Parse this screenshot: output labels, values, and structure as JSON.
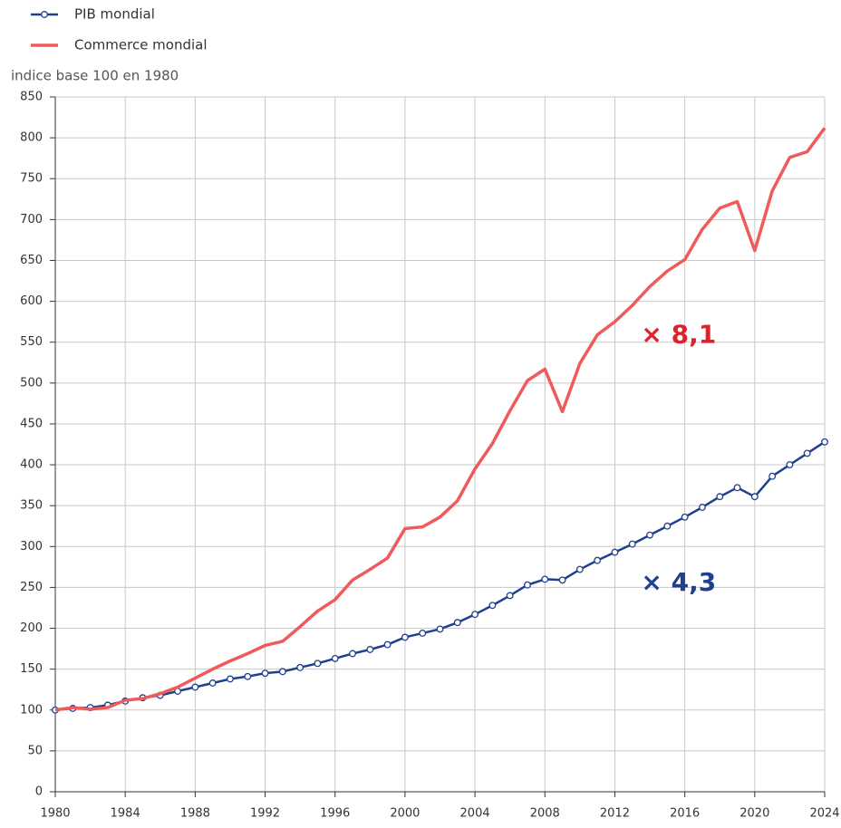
{
  "chart_data": {
    "type": "line",
    "y_label": "indice base 100 en 1980",
    "x": [
      1980,
      1981,
      1982,
      1983,
      1984,
      1985,
      1986,
      1987,
      1988,
      1989,
      1990,
      1991,
      1992,
      1993,
      1994,
      1995,
      1996,
      1997,
      1998,
      1999,
      2000,
      2001,
      2002,
      2003,
      2004,
      2005,
      2006,
      2007,
      2008,
      2009,
      2010,
      2011,
      2012,
      2013,
      2014,
      2015,
      2016,
      2017,
      2018,
      2019,
      2020,
      2021,
      2022,
      2023,
      2024
    ],
    "series": [
      {
        "name": "PIB mondial",
        "color": "#1f3f8f",
        "markers": true,
        "values": [
          100,
          102,
          103,
          106,
          111,
          115,
          118,
          123,
          128,
          133,
          138,
          141,
          145,
          147,
          152,
          157,
          163,
          169,
          174,
          180,
          189,
          194,
          199,
          207,
          217,
          228,
          240,
          253,
          260,
          259,
          272,
          283,
          293,
          303,
          314,
          325,
          336,
          348,
          361,
          372,
          361,
          386,
          400,
          414,
          428
        ]
      },
      {
        "name": "Commerce mondial",
        "color": "#f05a5a",
        "markers": false,
        "values": [
          100,
          103,
          101,
          103,
          112,
          114,
          120,
          128,
          139,
          150,
          160,
          169,
          179,
          184,
          202,
          221,
          235,
          259,
          272,
          286,
          322,
          324,
          336,
          356,
          395,
          426,
          466,
          503,
          517,
          465,
          524,
          559,
          575,
          595,
          618,
          637,
          651,
          688,
          714,
          722,
          662,
          735,
          776,
          783,
          812
        ]
      }
    ],
    "annotations": [
      {
        "text": "× 8,1",
        "x": 2013.5,
        "y": 558,
        "color": "#e0202a"
      },
      {
        "text": "× 4,3",
        "x": 2013.5,
        "y": 255,
        "color": "#1f3f8f"
      }
    ],
    "xlim": [
      1980,
      2024
    ],
    "ylim": [
      0,
      850
    ],
    "xticks": [
      1980,
      1984,
      1988,
      1992,
      1996,
      2000,
      2004,
      2008,
      2012,
      2016,
      2020,
      2024
    ],
    "yticks": [
      0,
      50,
      100,
      150,
      200,
      250,
      300,
      350,
      400,
      450,
      500,
      550,
      600,
      650,
      700,
      750,
      800,
      850
    ],
    "grid": true
  }
}
